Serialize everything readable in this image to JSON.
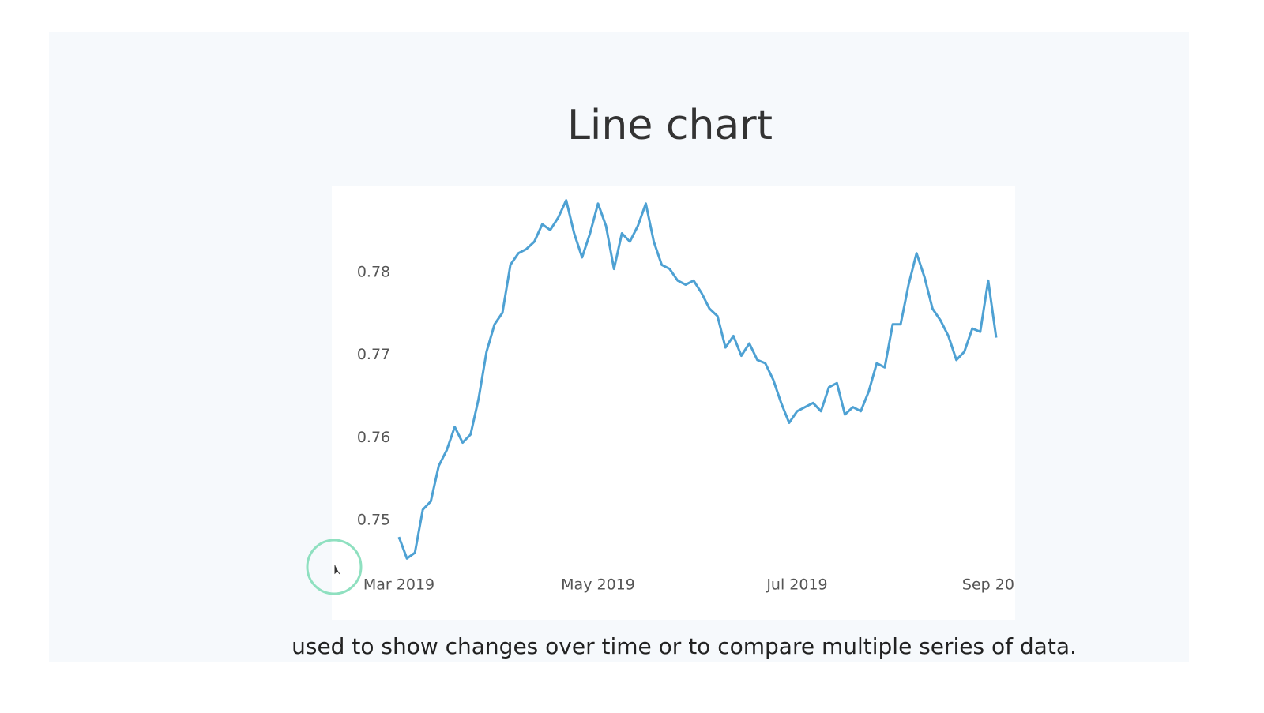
{
  "chart_data": {
    "type": "line",
    "title": "Line chart",
    "categories": [
      "Mar 2019",
      null,
      null,
      null,
      null,
      null,
      null,
      null,
      null,
      null,
      null,
      null,
      null,
      null,
      null,
      null,
      null,
      null,
      null,
      null,
      null,
      null,
      null,
      null,
      null,
      "May 2019",
      null,
      null,
      null,
      null,
      null,
      null,
      null,
      null,
      null,
      null,
      null,
      null,
      null,
      null,
      null,
      null,
      null,
      null,
      null,
      null,
      null,
      null,
      null,
      null,
      "Jul 2019",
      null,
      null,
      null,
      null,
      null,
      null,
      null,
      null,
      null,
      null,
      null,
      null,
      null,
      null,
      null,
      null,
      null,
      null,
      null,
      null,
      null,
      null,
      null,
      "Sep 20",
      null
    ],
    "values": [
      0.748,
      0.7454,
      0.7461,
      0.7513,
      0.7523,
      0.7566,
      0.7585,
      0.7613,
      0.7594,
      0.7604,
      0.7647,
      0.7704,
      0.7737,
      0.7751,
      0.7809,
      0.7823,
      0.7828,
      0.7837,
      0.7858,
      0.7851,
      0.7866,
      0.7887,
      0.7847,
      0.7818,
      0.7847,
      0.7883,
      0.7856,
      0.7804,
      0.7847,
      0.7837,
      0.7856,
      0.7883,
      0.7837,
      0.7809,
      0.7804,
      0.779,
      0.7785,
      0.779,
      0.7775,
      0.7756,
      0.7747,
      0.7709,
      0.7723,
      0.7699,
      0.7714,
      0.7694,
      0.769,
      0.767,
      0.7642,
      0.7618,
      0.7632,
      0.7637,
      0.7642,
      0.7632,
      0.7661,
      0.7666,
      0.7628,
      0.7637,
      0.7632,
      0.7656,
      0.769,
      0.7685,
      0.7737,
      0.7737,
      0.7785,
      0.7823,
      0.7794,
      0.7756,
      0.7742,
      0.7723,
      0.7694,
      0.7704,
      0.7732,
      0.7728,
      0.779,
      0.7721
    ],
    "color": "#4ea1d3",
    "ylim": [
      0.744,
      0.79
    ],
    "yticks": [
      0.75,
      0.76,
      0.77,
      0.78
    ],
    "grid": false
  },
  "caption": "used to show changes over time or to compare multiple series of data."
}
